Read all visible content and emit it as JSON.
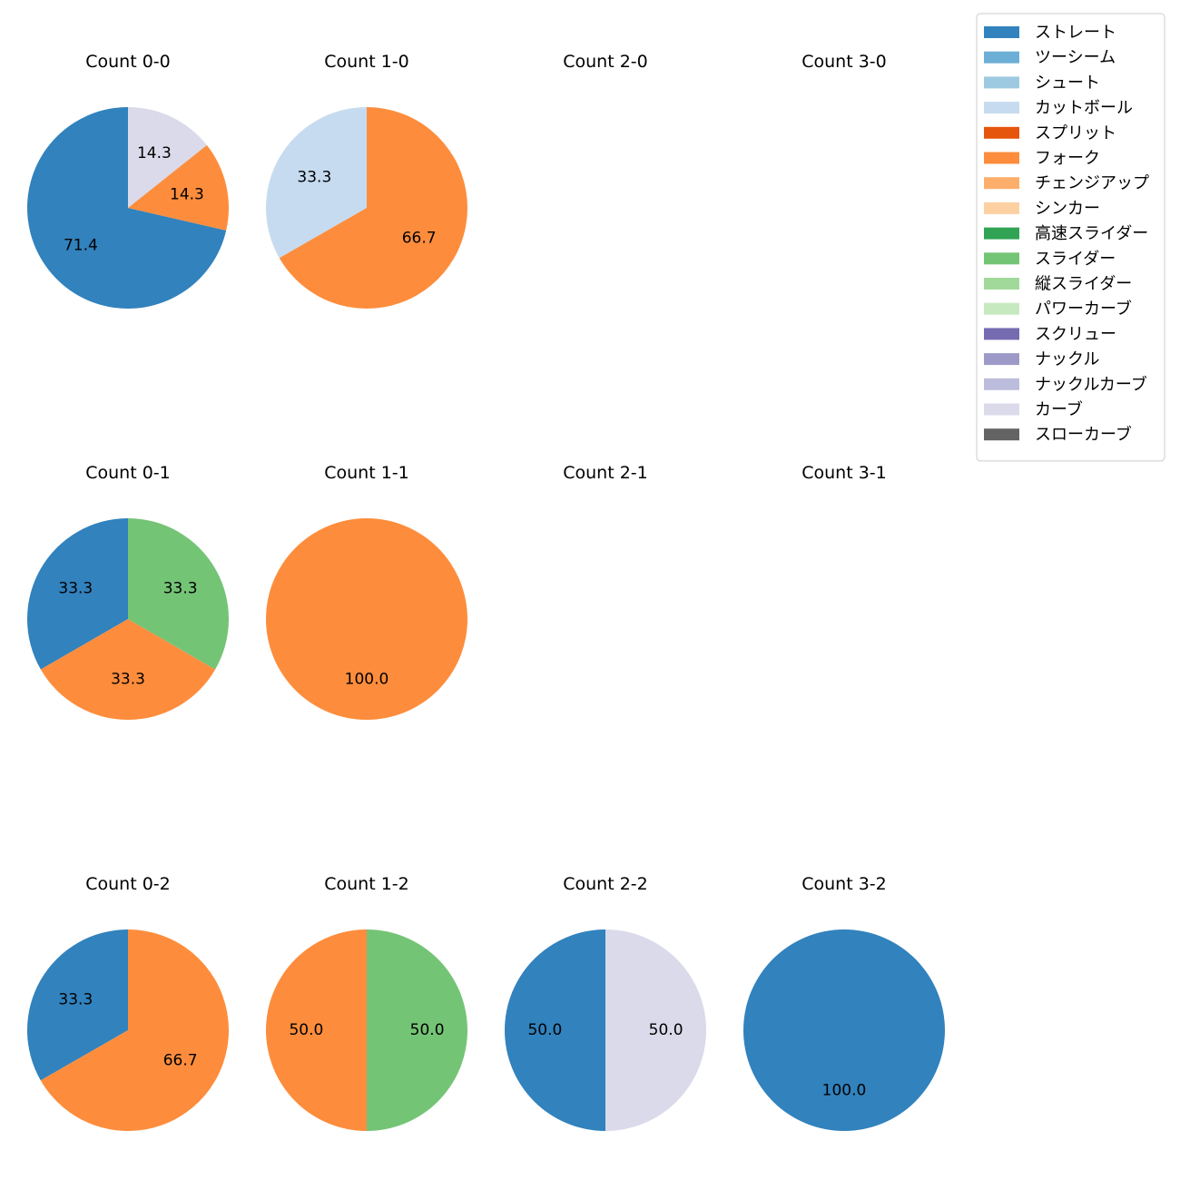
{
  "chart_data": {
    "type": "pie",
    "series_order": [
      "ストレート",
      "ツーシーム",
      "シュート",
      "カットボール",
      "スプリット",
      "フォーク",
      "チェンジアップ",
      "シンカー",
      "高速スライダー",
      "スライダー",
      "縦スライダー",
      "パワーカーブ",
      "スクリュー",
      "ナックル",
      "ナックルカーブ",
      "カーブ",
      "スローカーブ"
    ],
    "colors": {
      "ストレート": "#3182bd",
      "ツーシーム": "#6baed6",
      "シュート": "#9ecae1",
      "カットボール": "#c6dbef",
      "スプリット": "#e6550d",
      "フォーク": "#fd8d3c",
      "チェンジアップ": "#fdae6b",
      "シンカー": "#fdd0a2",
      "高速スライダー": "#31a354",
      "スライダー": "#74c476",
      "縦スライダー": "#a1d99b",
      "パワーカーブ": "#c7e9c0",
      "スクリュー": "#756bb1",
      "ナックル": "#9e9ac8",
      "ナックルカーブ": "#bcbddc",
      "カーブ": "#dadaeb",
      "スローカーブ": "#636363"
    },
    "legend": {
      "labels": [
        "ストレート",
        "ツーシーム",
        "シュート",
        "カットボール",
        "スプリット",
        "フォーク",
        "チェンジアップ",
        "シンカー",
        "高速スライダー",
        "スライダー",
        "縦スライダー",
        "パワーカーブ",
        "スクリュー",
        "ナックル",
        "ナックルカーブ",
        "カーブ",
        "スローカーブ"
      ],
      "placement": "top-right"
    },
    "subplots": [
      {
        "title": "Count 0-0",
        "slices": [
          {
            "label": "ストレート",
            "value": 71.4
          },
          {
            "label": "フォーク",
            "value": 14.3
          },
          {
            "label": "カーブ",
            "value": 14.3
          }
        ]
      },
      {
        "title": "Count 1-0",
        "slices": [
          {
            "label": "カットボール",
            "value": 33.3
          },
          {
            "label": "フォーク",
            "value": 66.7
          }
        ]
      },
      {
        "title": "Count 2-0",
        "slices": []
      },
      {
        "title": "Count 3-0",
        "slices": []
      },
      {
        "title": "Count 0-1",
        "slices": [
          {
            "label": "ストレート",
            "value": 33.3
          },
          {
            "label": "フォーク",
            "value": 33.3
          },
          {
            "label": "スライダー",
            "value": 33.3
          }
        ]
      },
      {
        "title": "Count 1-1",
        "slices": [
          {
            "label": "フォーク",
            "value": 100.0
          }
        ]
      },
      {
        "title": "Count 2-1",
        "slices": []
      },
      {
        "title": "Count 3-1",
        "slices": []
      },
      {
        "title": "Count 0-2",
        "slices": [
          {
            "label": "ストレート",
            "value": 33.3
          },
          {
            "label": "フォーク",
            "value": 66.7
          }
        ]
      },
      {
        "title": "Count 1-2",
        "slices": [
          {
            "label": "フォーク",
            "value": 50.0
          },
          {
            "label": "スライダー",
            "value": 50.0
          }
        ]
      },
      {
        "title": "Count 2-2",
        "slices": [
          {
            "label": "ストレート",
            "value": 50.0
          },
          {
            "label": "カーブ",
            "value": 50.0
          }
        ]
      },
      {
        "title": "Count 3-2",
        "slices": [
          {
            "label": "ストレート",
            "value": 100.0
          }
        ]
      }
    ]
  }
}
